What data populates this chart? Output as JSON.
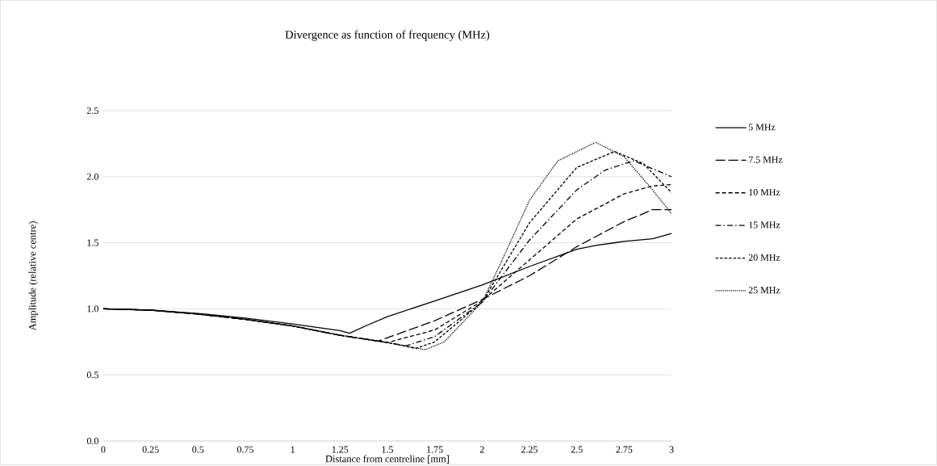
{
  "chart_data": {
    "type": "line",
    "title": "Divergence as function of frequency (MHz)",
    "xlabel": "Distance from centreline [mm]",
    "ylabel": "Amplitude (relative  centre)",
    "xlim": [
      0,
      3
    ],
    "xticks": [
      0,
      0.25,
      0.5,
      0.75,
      1,
      1.25,
      1.5,
      1.75,
      2,
      2.25,
      2.5,
      2.75,
      3
    ],
    "ylim": [
      0,
      2.5
    ],
    "yticks": [
      {
        "value": 0,
        "label": "0.0"
      },
      {
        "value": 0.5,
        "label": "0.5"
      },
      {
        "value": 1,
        "label": "1.0"
      },
      {
        "value": 1.5,
        "label": "1.5"
      },
      {
        "value": 2,
        "label": "2.0"
      },
      {
        "value": 2.5,
        "label": "2.5"
      }
    ],
    "grid": "y",
    "legend": "right",
    "marker": "none",
    "series": [
      {
        "name": "5 MHz",
        "color": "#000000",
        "line_style": "solid",
        "x": [
          0,
          0.25,
          0.5,
          0.75,
          1,
          1.25,
          1.3,
          1.4,
          1.5,
          1.75,
          2,
          2.25,
          2.5,
          2.6,
          2.75,
          2.9,
          3
        ],
        "values": [
          1.0,
          0.99,
          0.965,
          0.93,
          0.885,
          0.835,
          0.815,
          0.88,
          0.94,
          1.06,
          1.18,
          1.32,
          1.45,
          1.48,
          1.51,
          1.53,
          1.57
        ]
      },
      {
        "name": "7.5 MHz",
        "color": "#000000",
        "line_style": "long dashed",
        "x": [
          0,
          0.25,
          0.5,
          0.75,
          1,
          1.25,
          1.45,
          1.75,
          2,
          2.25,
          2.5,
          2.75,
          2.9,
          3
        ],
        "values": [
          1.0,
          0.99,
          0.96,
          0.92,
          0.87,
          0.8,
          0.755,
          0.91,
          1.07,
          1.25,
          1.47,
          1.66,
          1.75,
          1.75
        ]
      },
      {
        "name": "10 MHz",
        "color": "#000000",
        "line_style": "dashed",
        "x": [
          0,
          0.25,
          0.5,
          0.75,
          1,
          1.25,
          1.5,
          1.75,
          2,
          2.25,
          2.5,
          2.75,
          2.9,
          3
        ],
        "values": [
          1.0,
          0.99,
          0.96,
          0.92,
          0.87,
          0.8,
          0.745,
          0.84,
          1.06,
          1.37,
          1.68,
          1.87,
          1.93,
          1.94
        ]
      },
      {
        "name": "15 MHz",
        "color": "#000000",
        "line_style": "dash dot",
        "x": [
          0,
          0.25,
          0.5,
          0.75,
          1,
          1.25,
          1.5,
          1.6,
          1.75,
          2,
          2.25,
          2.5,
          2.65,
          2.8,
          3
        ],
        "values": [
          1.0,
          0.99,
          0.96,
          0.92,
          0.87,
          0.8,
          0.745,
          0.72,
          0.79,
          1.05,
          1.52,
          1.9,
          2.05,
          2.12,
          2.0
        ]
      },
      {
        "name": "20 MHz",
        "color": "#000000",
        "line_style": "densely dashed",
        "x": [
          0,
          0.25,
          0.5,
          0.75,
          1,
          1.25,
          1.5,
          1.65,
          1.75,
          2,
          2.25,
          2.5,
          2.7,
          2.85,
          3
        ],
        "values": [
          1.0,
          0.99,
          0.96,
          0.92,
          0.87,
          0.8,
          0.745,
          0.7,
          0.75,
          1.05,
          1.65,
          2.07,
          2.19,
          2.1,
          1.88
        ]
      },
      {
        "name": "25 MHz",
        "color": "#000000",
        "line_style": "dotted",
        "x": [
          0,
          0.25,
          0.5,
          0.75,
          1,
          1.25,
          1.5,
          1.7,
          1.8,
          2,
          2.1,
          2.25,
          2.4,
          2.6,
          2.75,
          2.9,
          3
        ],
        "values": [
          1.0,
          0.99,
          0.96,
          0.92,
          0.87,
          0.8,
          0.745,
          0.69,
          0.75,
          1.05,
          1.35,
          1.82,
          2.12,
          2.26,
          2.15,
          1.9,
          1.72
        ]
      }
    ]
  }
}
